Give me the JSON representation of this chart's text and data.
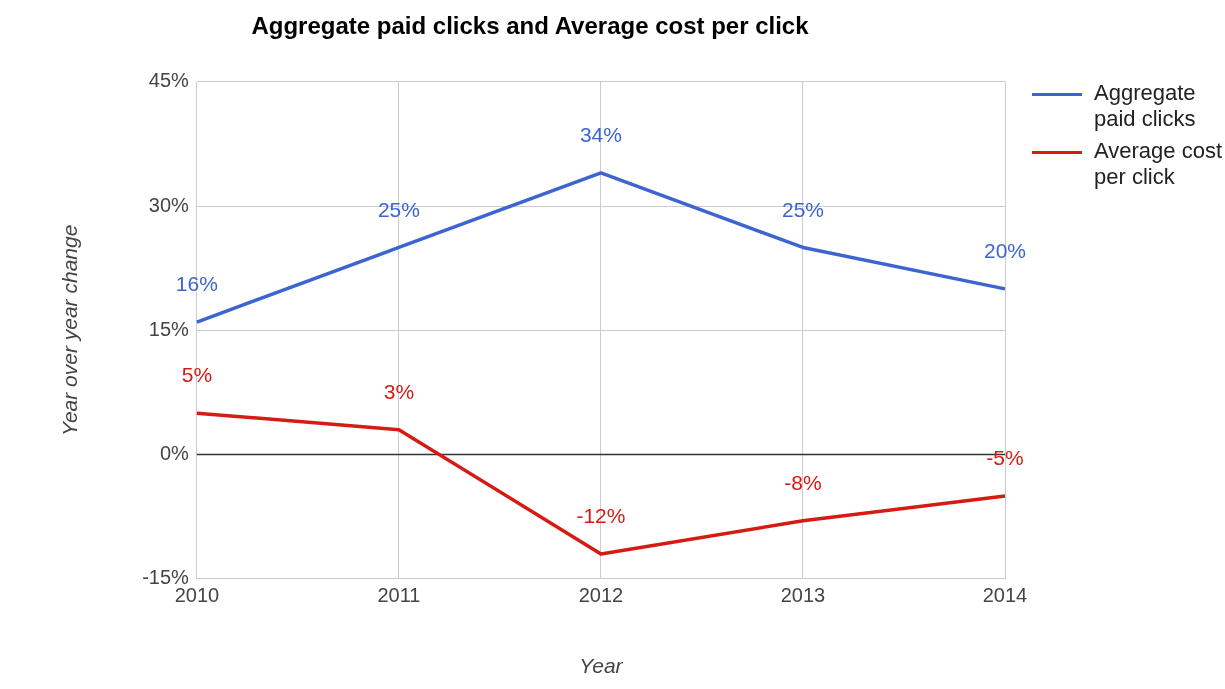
{
  "chart_data": {
    "type": "line",
    "title": "Aggregate paid clicks and Average cost per click",
    "xlabel": "Year",
    "ylabel": "Year over year change",
    "categories": [
      "2010",
      "2011",
      "2012",
      "2013",
      "2014"
    ],
    "series": [
      {
        "name": "Aggregate paid clicks",
        "color": "#3d65d1",
        "values": [
          16,
          25,
          34,
          25,
          20
        ],
        "value_labels": [
          "16%",
          "25%",
          "34%",
          "25%",
          "20%"
        ]
      },
      {
        "name": "Average cost per click",
        "color": "#d61b13",
        "values": [
          5,
          3,
          -12,
          -8,
          -5
        ],
        "value_labels": [
          "5%",
          "3%",
          "-12%",
          "-8%",
          "-5%"
        ]
      }
    ],
    "ylim": [
      -15,
      45
    ],
    "yticks": [
      {
        "value": -15,
        "label": "-15%"
      },
      {
        "value": 0,
        "label": "0%"
      },
      {
        "value": 15,
        "label": "15%"
      },
      {
        "value": 30,
        "label": "30%"
      },
      {
        "value": 45,
        "label": "45%"
      }
    ],
    "ref_lines": [
      {
        "axis": "y",
        "value": 0,
        "color": "#333333"
      }
    ],
    "grid": true,
    "legend": "top right",
    "marker": "none",
    "line_style": "solid"
  }
}
